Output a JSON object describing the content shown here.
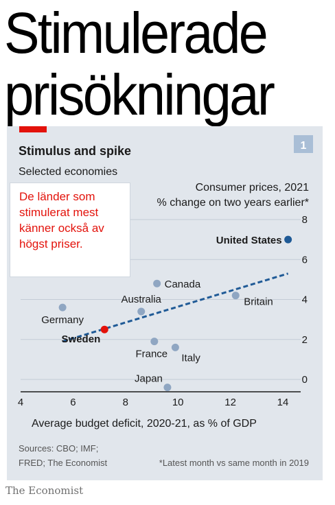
{
  "headline": {
    "line1": "Stimulerade",
    "line2": "prisökningar"
  },
  "chart_data": {
    "type": "scatter",
    "title": "Stimulus and spike",
    "subtitle": "Selected economies",
    "figure_number": "1",
    "y_label_lines": [
      "Consumer prices, 2021",
      "% change on two years earlier*"
    ],
    "xlabel": "Average budget deficit, 2020-21, as % of GDP",
    "xlim": [
      4,
      14
    ],
    "ylim": [
      0,
      8
    ],
    "x_ticks": [
      "4",
      "6",
      "8",
      "10",
      "12",
      "14"
    ],
    "y_ticks": [
      "0",
      "2",
      "4",
      "6",
      "8"
    ],
    "grid": "horizontal",
    "trendline": {
      "x": [
        5.6,
        14.2
      ],
      "y": [
        1.9,
        5.3
      ],
      "style": "dashed"
    },
    "points": [
      {
        "name": "Germany",
        "x": 5.6,
        "y": 3.6
      },
      {
        "name": "Sweden",
        "x": 7.2,
        "y": 2.5,
        "highlight": "red"
      },
      {
        "name": "Australia",
        "x": 8.6,
        "y": 3.4
      },
      {
        "name": "France",
        "x": 9.1,
        "y": 1.9
      },
      {
        "name": "Canada",
        "x": 9.2,
        "y": 4.8
      },
      {
        "name": "Japan",
        "x": 9.6,
        "y": -0.4
      },
      {
        "name": "Italy",
        "x": 9.9,
        "y": 1.6
      },
      {
        "name": "Britain",
        "x": 12.2,
        "y": 4.2
      },
      {
        "name": "United States",
        "x": 14.2,
        "y": 7.0,
        "highlight": "dark"
      }
    ],
    "sources": [
      "Sources: CBO; IMF;",
      "FRED; The Economist"
    ],
    "footnote": "*Latest month vs same month in 2019",
    "colors": {
      "panel": "#e1e6ec",
      "point": "#8fa6c2",
      "us_point": "#1f5a96",
      "sweden_point": "#e3120b",
      "trend": "#1f5a96",
      "badge": "#a9bed6"
    }
  },
  "annotation": {
    "lines": [
      "De länder som",
      "stimulerat mest",
      "känner också av",
      "högst priser."
    ]
  },
  "footer": {
    "brand": "The Economist"
  }
}
